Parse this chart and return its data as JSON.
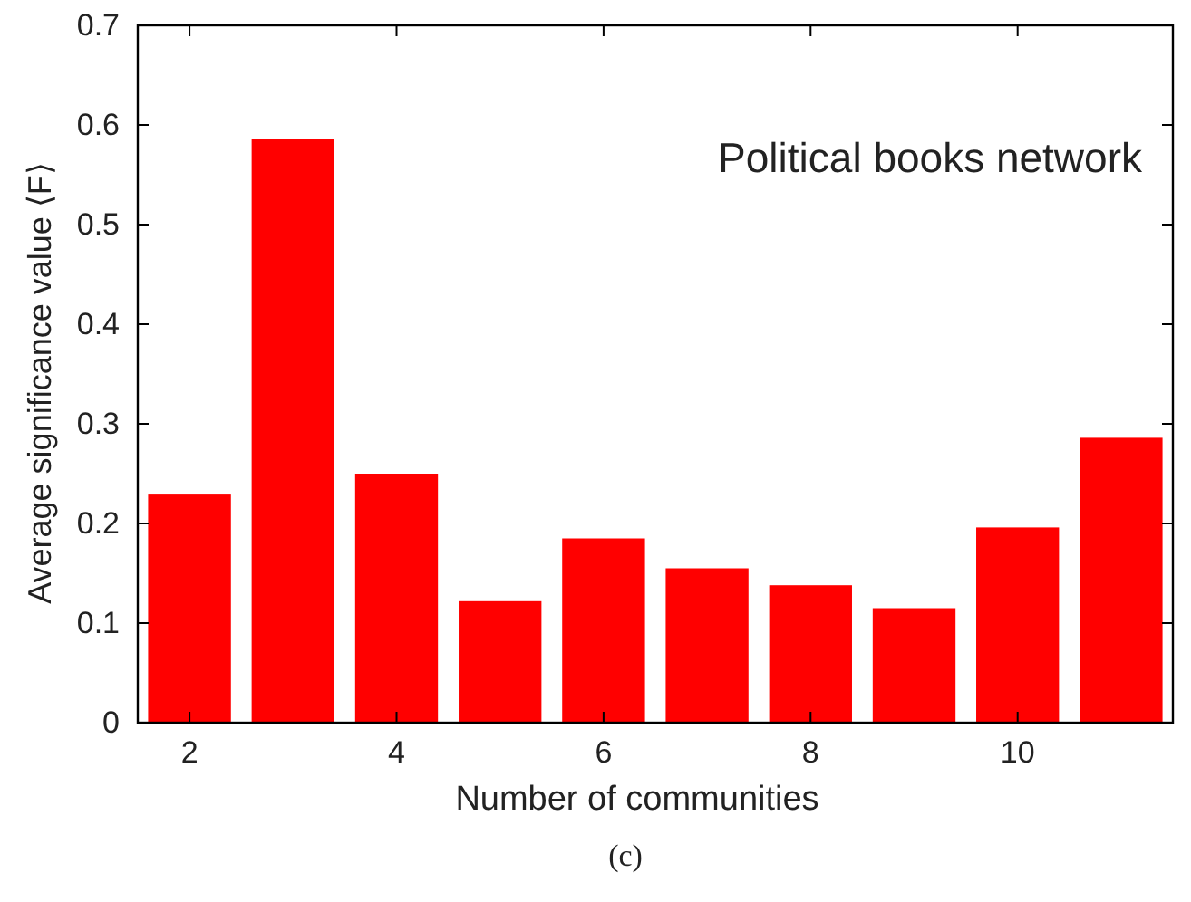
{
  "chart_data": {
    "type": "bar",
    "title": "Political books network",
    "xlabel": "Number of communities",
    "ylabel": "Average significance value ⟨F⟩",
    "annotations": [
      "(c)"
    ],
    "x": [
      2,
      3,
      4,
      5,
      6,
      7,
      8,
      9,
      10,
      11
    ],
    "values": [
      0.229,
      0.586,
      0.25,
      0.122,
      0.185,
      0.155,
      0.138,
      0.115,
      0.196,
      0.286
    ],
    "color": "#ff0000",
    "xlim": [
      1.5,
      11.5
    ],
    "xticks": [
      2,
      4,
      6,
      8,
      10
    ],
    "ylim": [
      0,
      0.7
    ],
    "yticks": [
      0,
      0.1,
      0.2,
      0.3,
      0.4,
      0.5,
      0.6,
      0.7
    ],
    "grid": false
  }
}
